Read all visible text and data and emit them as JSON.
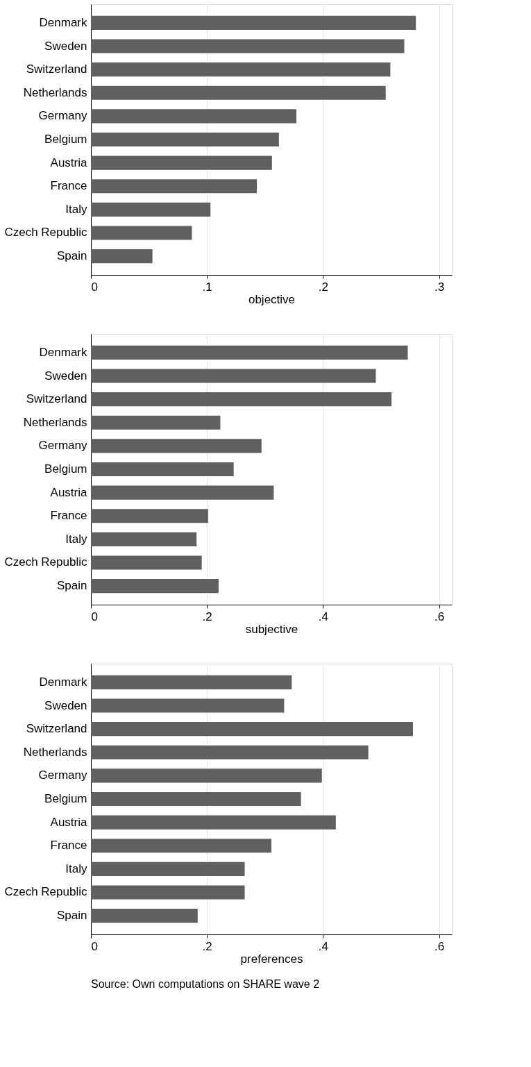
{
  "chart_data": [
    {
      "type": "bar",
      "orientation": "horizontal",
      "xlabel": "objective",
      "categories": [
        "Denmark",
        "Sweden",
        "Switzerland",
        "Netherlands",
        "Germany",
        "Belgium",
        "Austria",
        "France",
        "Italy",
        "Czech Republic",
        "Spain"
      ],
      "values": [
        0.28,
        0.27,
        0.258,
        0.254,
        0.177,
        0.162,
        0.156,
        0.143,
        0.103,
        0.087,
        0.053
      ],
      "color": "#606060",
      "xlim": [
        0,
        0.311
      ],
      "xticks": [
        0,
        {
          "value": 0.1,
          "label": ".1"
        },
        {
          "value": 0.2,
          "label": ".2"
        },
        {
          "value": 0.3,
          "label": ".3"
        }
      ],
      "grid": "x"
    },
    {
      "type": "bar",
      "orientation": "horizontal",
      "xlabel": "subjective",
      "categories": [
        "Denmark",
        "Sweden",
        "Switzerland",
        "Netherlands",
        "Germany",
        "Belgium",
        "Austria",
        "France",
        "Italy",
        "Czech Republic",
        "Spain"
      ],
      "values": [
        0.546,
        0.491,
        0.518,
        0.223,
        0.294,
        0.246,
        0.315,
        0.202,
        0.182,
        0.191,
        0.22
      ],
      "color": "#606060",
      "xlim": [
        0,
        0.622
      ],
      "xticks": [
        0,
        {
          "value": 0.2,
          "label": ".2"
        },
        {
          "value": 0.4,
          "label": ".4"
        },
        {
          "value": 0.6,
          "label": ".6"
        }
      ],
      "grid": "x"
    },
    {
      "type": "bar",
      "orientation": "horizontal",
      "xlabel": "preferences",
      "categories": [
        "Denmark",
        "Sweden",
        "Switzerland",
        "Netherlands",
        "Germany",
        "Belgium",
        "Austria",
        "France",
        "Italy",
        "Czech Republic",
        "Spain"
      ],
      "values": [
        0.346,
        0.333,
        0.555,
        0.478,
        0.398,
        0.362,
        0.422,
        0.311,
        0.265,
        0.265,
        0.184
      ],
      "color": "#606060",
      "xlim": [
        0,
        0.622
      ],
      "xticks": [
        0,
        {
          "value": 0.2,
          "label": ".2"
        },
        {
          "value": 0.4,
          "label": ".4"
        },
        {
          "value": 0.6,
          "label": ".6"
        }
      ],
      "grid": "x",
      "annotations": [
        "Source:  Own computations on SHARE wave 2"
      ]
    }
  ]
}
